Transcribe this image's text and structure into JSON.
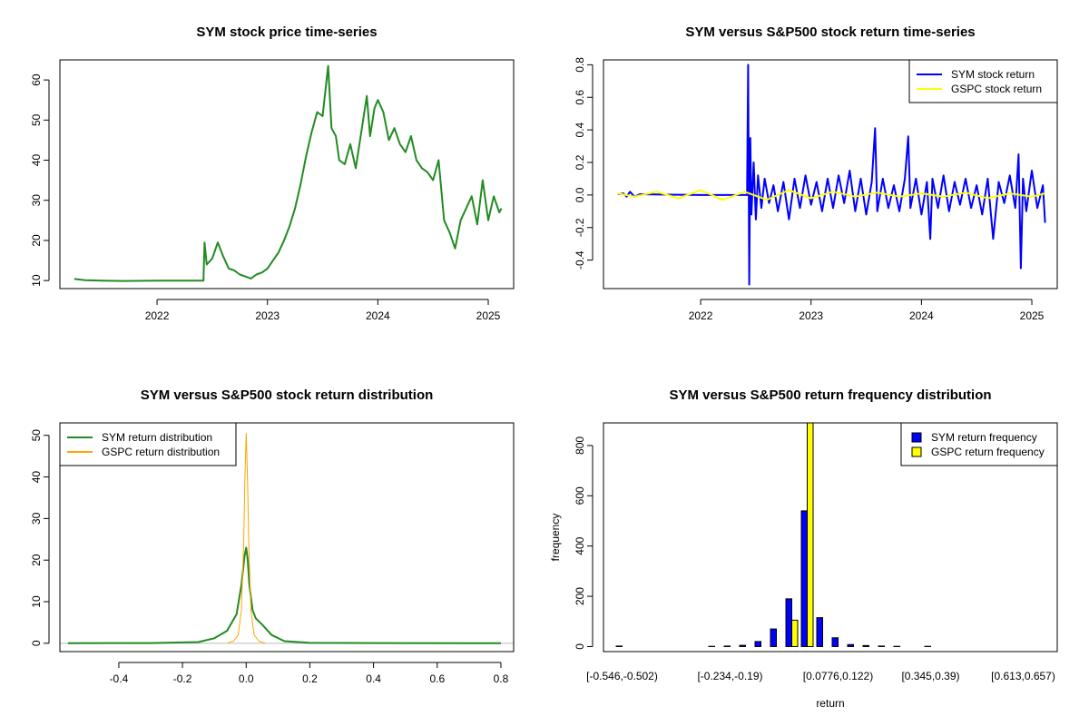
{
  "chart_data": [
    {
      "id": "price",
      "type": "line",
      "title": "SYM stock price time-series",
      "xlabel": "",
      "ylabel": "",
      "xlim": [
        2021.12,
        2025.23
      ],
      "ylim": [
        8.0,
        65.0
      ],
      "xticks": [
        2022,
        2023,
        2024,
        2025
      ],
      "xtick_labels": [
        "2022",
        "2023",
        "2024",
        "2025"
      ],
      "yticks": [
        10,
        20,
        30,
        40,
        50,
        60
      ],
      "ytick_labels": [
        "10",
        "20",
        "30",
        "40",
        "50",
        "60"
      ],
      "series": [
        {
          "name": "SYM price",
          "color": "#228B22",
          "x": [
            2021.25,
            2021.35,
            2021.5,
            2021.7,
            2022.0,
            2022.2,
            2022.42,
            2022.43,
            2022.45,
            2022.5,
            2022.55,
            2022.6,
            2022.65,
            2022.7,
            2022.75,
            2022.8,
            2022.85,
            2022.9,
            2022.95,
            2023.0,
            2023.05,
            2023.1,
            2023.15,
            2023.2,
            2023.25,
            2023.3,
            2023.35,
            2023.4,
            2023.45,
            2023.5,
            2023.55,
            2023.58,
            2023.62,
            2023.65,
            2023.7,
            2023.75,
            2023.8,
            2023.85,
            2023.9,
            2023.93,
            2023.97,
            2024.0,
            2024.05,
            2024.1,
            2024.15,
            2024.2,
            2024.25,
            2024.3,
            2024.35,
            2024.4,
            2024.45,
            2024.5,
            2024.55,
            2024.6,
            2024.65,
            2024.7,
            2024.75,
            2024.8,
            2024.85,
            2024.9,
            2024.95,
            2025.0,
            2025.05,
            2025.1,
            2025.12
          ],
          "y": [
            10.4,
            10.1,
            10.0,
            9.9,
            10.0,
            10.0,
            10.0,
            19.5,
            14.0,
            15.5,
            19.5,
            16.0,
            13.0,
            12.5,
            11.5,
            11.0,
            10.5,
            11.5,
            12.0,
            13.0,
            15.0,
            17.0,
            20.0,
            23.5,
            28.0,
            34.0,
            41.0,
            47.0,
            52.0,
            51.0,
            63.5,
            48.0,
            46.0,
            40.0,
            39.0,
            44.0,
            38.0,
            47.0,
            56.0,
            46.0,
            53.0,
            55.0,
            52.0,
            45.0,
            48.0,
            44.0,
            42.0,
            46.0,
            40.0,
            38.0,
            37.0,
            35.0,
            40.0,
            25.0,
            22.0,
            18.0,
            25.0,
            28.0,
            31.0,
            24.0,
            35.0,
            25.0,
            31.0,
            27.0,
            28.0
          ]
        }
      ]
    },
    {
      "id": "returns",
      "type": "line",
      "title": "SYM versus S&P500 stock return time-series",
      "xlabel": "",
      "ylabel": "",
      "xlim": [
        2021.12,
        2025.23
      ],
      "ylim": [
        -0.575,
        0.83
      ],
      "xticks": [
        2022,
        2023,
        2024,
        2025
      ],
      "xtick_labels": [
        "2022",
        "2023",
        "2024",
        "2025"
      ],
      "yticks": [
        -0.4,
        -0.2,
        0.0,
        0.2,
        0.4,
        0.6,
        0.8
      ],
      "ytick_labels": [
        "-0.4",
        "-0.2",
        "0.0",
        "0.2",
        "0.4",
        "0.6",
        "0.8"
      ],
      "legend": {
        "placement": "top-right",
        "entries": [
          {
            "label": "SYM stock return",
            "color": "#0000FF"
          },
          {
            "label": "GSPC stock return",
            "color": "#FFFF00"
          }
        ]
      },
      "series": [
        {
          "name": "SYM stock return",
          "color": "#0000FF",
          "x": [
            2021.25,
            2021.3,
            2021.33,
            2021.36,
            2021.4,
            2021.45,
            2021.7,
            2022.0,
            2022.3,
            2022.42,
            2022.43,
            2022.44,
            2022.45,
            2022.46,
            2022.48,
            2022.5,
            2022.52,
            2022.55,
            2022.58,
            2022.62,
            2022.66,
            2022.7,
            2022.75,
            2022.8,
            2022.85,
            2022.9,
            2022.95,
            2023.0,
            2023.05,
            2023.1,
            2023.15,
            2023.2,
            2023.25,
            2023.3,
            2023.35,
            2023.4,
            2023.45,
            2023.5,
            2023.55,
            2023.58,
            2023.6,
            2023.65,
            2023.7,
            2023.75,
            2023.8,
            2023.85,
            2023.88,
            2023.9,
            2023.95,
            2024.0,
            2024.05,
            2024.08,
            2024.1,
            2024.15,
            2024.2,
            2024.25,
            2024.3,
            2024.35,
            2024.4,
            2024.45,
            2024.5,
            2024.55,
            2024.6,
            2024.65,
            2024.7,
            2024.75,
            2024.8,
            2024.85,
            2024.88,
            2024.9,
            2024.92,
            2024.95,
            2025.0,
            2025.05,
            2025.1,
            2025.12
          ],
          "y": [
            0.005,
            0.01,
            -0.01,
            0.02,
            -0.01,
            0.005,
            0.002,
            0.0,
            0.0,
            0.0,
            0.8,
            -0.55,
            0.35,
            -0.12,
            0.2,
            -0.15,
            0.12,
            -0.08,
            0.1,
            -0.05,
            0.06,
            -0.1,
            0.08,
            -0.15,
            0.1,
            -0.08,
            0.12,
            -0.06,
            0.08,
            -0.1,
            0.1,
            -0.08,
            0.12,
            -0.05,
            0.15,
            -0.1,
            0.1,
            -0.12,
            0.08,
            0.41,
            -0.1,
            0.1,
            -0.08,
            0.06,
            -0.1,
            0.1,
            0.36,
            -0.08,
            0.1,
            -0.12,
            0.08,
            -0.27,
            0.1,
            -0.08,
            0.12,
            -0.1,
            0.08,
            -0.06,
            0.1,
            -0.08,
            0.06,
            -0.12,
            0.1,
            -0.27,
            0.08,
            -0.05,
            0.12,
            -0.08,
            0.25,
            -0.45,
            0.1,
            -0.1,
            0.15,
            -0.08,
            0.06,
            -0.17
          ]
        },
        {
          "name": "GSPC stock return",
          "color": "#FFFF00",
          "x": [
            2021.25,
            2021.4,
            2021.6,
            2021.8,
            2022.0,
            2022.2,
            2022.4,
            2022.6,
            2022.8,
            2023.0,
            2023.2,
            2023.4,
            2023.6,
            2023.8,
            2024.0,
            2024.2,
            2024.4,
            2024.6,
            2024.8,
            2025.0,
            2025.12
          ],
          "y": [
            0.01,
            -0.01,
            0.02,
            -0.02,
            0.03,
            -0.03,
            0.02,
            -0.03,
            0.03,
            -0.02,
            0.02,
            -0.01,
            0.015,
            -0.01,
            0.01,
            -0.01,
            0.015,
            -0.02,
            0.01,
            -0.01,
            0.01
          ]
        }
      ]
    },
    {
      "id": "density",
      "type": "line",
      "title": "SYM versus S&P500 stock return distribution",
      "xlabel": "",
      "ylabel": "",
      "xlim": [
        -0.585,
        0.84
      ],
      "ylim": [
        -2.0,
        53.0
      ],
      "xticks": [
        -0.4,
        -0.2,
        0.0,
        0.2,
        0.4,
        0.6,
        0.8
      ],
      "xtick_labels": [
        "-0.4",
        "-0.2",
        "0.0",
        "0.2",
        "0.4",
        "0.6",
        "0.8"
      ],
      "yticks": [
        0,
        10,
        20,
        30,
        40,
        50
      ],
      "ytick_labels": [
        "0",
        "10",
        "20",
        "30",
        "40",
        "50"
      ],
      "legend": {
        "placement": "top-left",
        "entries": [
          {
            "label": "SYM return distribution",
            "color": "#228B22"
          },
          {
            "label": "GSPC return distribution",
            "color": "#FFA500"
          }
        ]
      },
      "series": [
        {
          "name": "SYM return distribution",
          "color": "#228B22",
          "x": [
            -0.56,
            -0.3,
            -0.15,
            -0.1,
            -0.06,
            -0.03,
            -0.015,
            -0.005,
            0.0,
            0.005,
            0.01,
            0.02,
            0.03,
            0.05,
            0.08,
            0.12,
            0.2,
            0.4,
            0.8
          ],
          "y": [
            0.0,
            0.05,
            0.3,
            1.2,
            3.0,
            7.0,
            14.0,
            21.0,
            23.0,
            20.0,
            14.0,
            8.0,
            6.0,
            4.5,
            2.0,
            0.5,
            0.1,
            0.05,
            0.0
          ]
        },
        {
          "name": "GSPC return distribution",
          "color": "#FFA500",
          "x": [
            -0.06,
            -0.04,
            -0.025,
            -0.015,
            -0.008,
            -0.004,
            0.0,
            0.004,
            0.008,
            0.015,
            0.025,
            0.04,
            0.06
          ],
          "y": [
            0.0,
            0.5,
            2.0,
            8.0,
            24.0,
            40.0,
            50.5,
            40.0,
            24.0,
            8.0,
            2.0,
            0.5,
            0.0
          ]
        }
      ]
    },
    {
      "id": "histogram",
      "type": "bar",
      "title": "SYM versus S&P500 return frequency distribution",
      "xlabel": "return",
      "ylabel": "frequency",
      "ylim": [
        -20,
        890
      ],
      "yticks": [
        0,
        200,
        400,
        600,
        800
      ],
      "ytick_labels": [
        "0",
        "200",
        "400",
        "600",
        "800"
      ],
      "category_count": 27,
      "label_indices": [
        0,
        7,
        14,
        20,
        26
      ],
      "category_labels": [
        "[-0.546,-0.502)",
        "[-0.234,-0.19)",
        "[0.0776,0.122)",
        "[0.345,0.39)",
        "[0.613,0.657)"
      ],
      "legend": {
        "placement": "top-right",
        "entries": [
          {
            "label": "SYM return frequency",
            "color": "#0000FF"
          },
          {
            "label": "GSPC return frequency",
            "color": "#FFFF00"
          }
        ]
      },
      "series": [
        {
          "name": "SYM return frequency",
          "color": "#0000FF",
          "values": [
            2,
            0,
            0,
            0,
            0,
            0,
            1,
            2,
            5,
            20,
            70,
            190,
            540,
            115,
            35,
            8,
            4,
            2,
            1,
            0,
            1,
            0,
            0,
            0,
            0,
            0,
            0
          ]
        },
        {
          "name": "GSPC return frequency",
          "color": "#FFFF00",
          "values": [
            0,
            0,
            0,
            0,
            0,
            0,
            0,
            0,
            0,
            0,
            0,
            105,
            890,
            0,
            0,
            0,
            0,
            0,
            0,
            0,
            0,
            0,
            0,
            0,
            0,
            0,
            0
          ]
        }
      ]
    }
  ]
}
